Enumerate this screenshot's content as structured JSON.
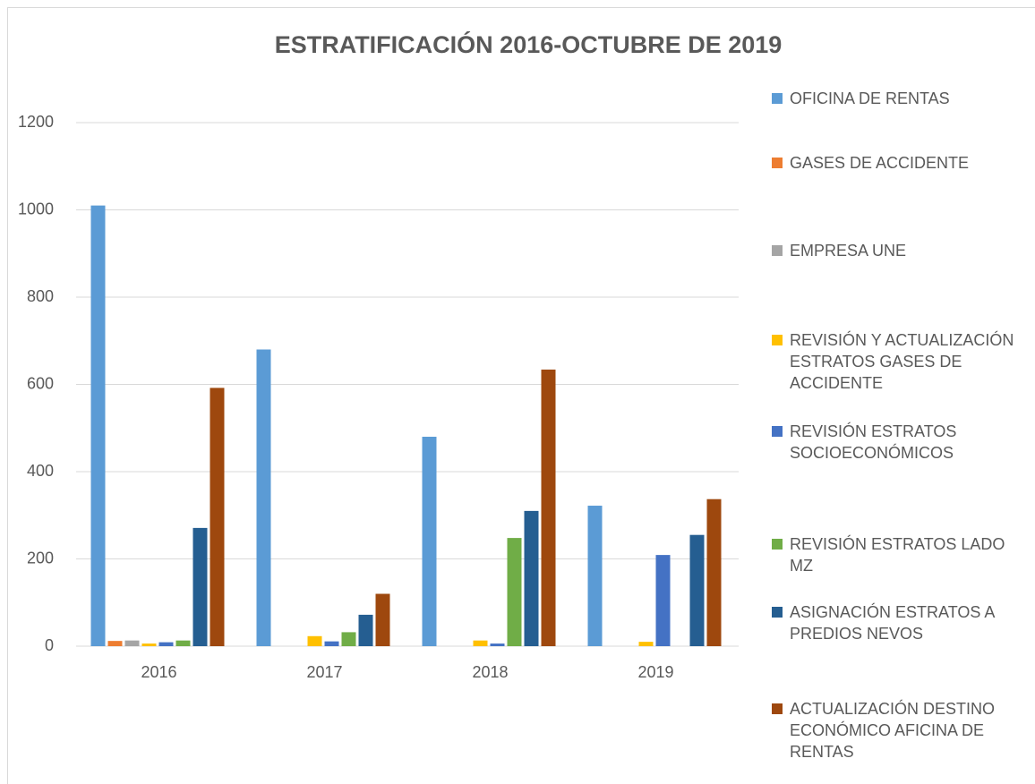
{
  "chart_data": {
    "type": "bar",
    "title": "ESTRATIFICACIÓN 2016-OCTUBRE DE 2019",
    "categories": [
      "2016",
      "2017",
      "2018",
      "2019"
    ],
    "series": [
      {
        "name": "OFICINA DE RENTAS",
        "color": "#5b9bd5",
        "values": [
          1010,
          680,
          480,
          322
        ]
      },
      {
        "name": "GASES DE ACCIDENTE",
        "color": "#ed7d31",
        "values": [
          12,
          0,
          0,
          0
        ]
      },
      {
        "name": "EMPRESA UNE",
        "color": "#a5a5a5",
        "values": [
          13,
          0,
          0,
          0
        ]
      },
      {
        "name": "REVISIÓN Y ACTUALIZACIÓN ESTRATOS GASES DE ACCIDENTE",
        "color": "#ffc000",
        "values": [
          6,
          23,
          13,
          10
        ]
      },
      {
        "name": "REVISIÓN ESTRATOS SOCIOECONÓMICOS",
        "color": "#4472c4",
        "values": [
          9,
          11,
          6,
          209
        ]
      },
      {
        "name": "REVISIÓN ESTRATOS LADO MZ",
        "color": "#70ad47",
        "values": [
          13,
          32,
          248,
          0
        ]
      },
      {
        "name": "ASIGNACIÓN ESTRATOS A PREDIOS NEVOS",
        "color": "#255e91",
        "values": [
          271,
          72,
          310,
          255
        ]
      },
      {
        "name": "ACTUALIZACIÓN DESTINO ECONÓMICO AFICINA DE RENTAS",
        "color": "#9e480e",
        "values": [
          592,
          120,
          634,
          337
        ]
      }
    ],
    "ylim": [
      0,
      1200
    ],
    "yticks": [
      0,
      200,
      400,
      600,
      800,
      1000,
      1200
    ],
    "grid": true,
    "legend": "right"
  }
}
